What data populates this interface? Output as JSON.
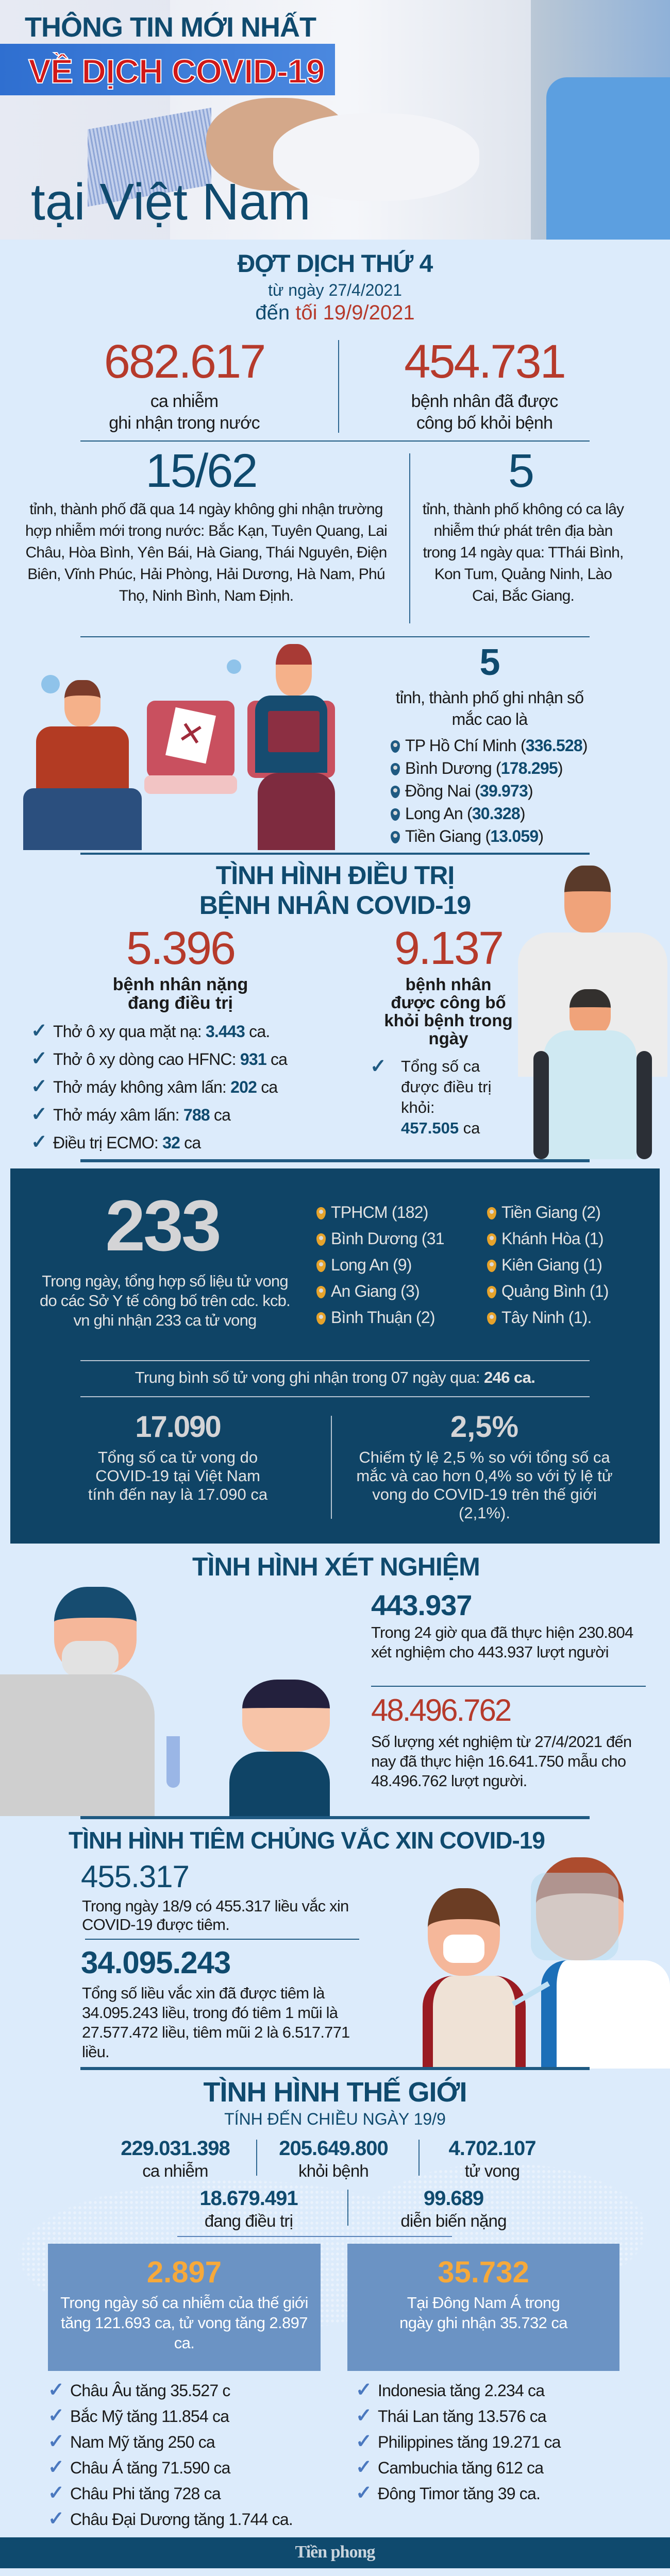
{
  "colors": {
    "background": "#dcebfb",
    "navy": "#0f4a6e",
    "red": "#b63a2b",
    "dark_panel": "#0f4466",
    "world_box": "#6b93c4",
    "orange": "#f6a93b"
  },
  "hero": {
    "line1": "THÔNG TIN MỚI NHẤT",
    "line2": "VỀ DỊCH COVID-19",
    "line3": "tại Việt Nam"
  },
  "wave": {
    "title": "ĐỢT DỊCH THỨ 4",
    "from": "từ ngày 27/4/2021",
    "to_prefix": "đến",
    "to_red": "tối 19/9/2021",
    "infected": {
      "value": "682.617",
      "label1": "ca nhiễm",
      "label2": "ghi nhận trong nước"
    },
    "recovered": {
      "value": "454.731",
      "label1": "bệnh nhân đã được",
      "label2": "công bố khỏi bệnh"
    },
    "no_new": {
      "value": "15/62",
      "text": "tỉnh, thành phố đã qua 14 ngày không ghi nhận trường hợp nhiễm mới trong nước: Bắc Kạn, Tuyên Quang, Lai Châu, Hòa Bình, Yên Bái, Hà Giang, Thái Nguyên, Điện Biên, Vĩnh Phúc, Hải Phòng, Hải Dương, Hà Nam, Phú Thọ, Ninh Bình, Nam Định."
    },
    "no_secondary": {
      "value": "5",
      "text": "tỉnh, thành phố không có ca lây nhiễm thứ phát trên địa bàn trong 14 ngày qua: TThái Bình, Kon Tum, Quảng Ninh, Lào Cai, Bắc Giang."
    },
    "top": {
      "value": "5",
      "text": "tỉnh, thành phố ghi nhận số mắc cao là",
      "items": [
        {
          "name": "TP Hồ Chí Minh",
          "count": "336.528"
        },
        {
          "name": "Bình Dương",
          "count": "178.295"
        },
        {
          "name": "Đồng Nai",
          "count": "39.973"
        },
        {
          "name": "Long An",
          "count": "30.328"
        },
        {
          "name": "Tiền Giang",
          "count": "13.059"
        }
      ]
    }
  },
  "treatment": {
    "title1": "TÌNH HÌNH ĐIỀU TRỊ",
    "title2": "BỆNH NHÂN COVID-19",
    "severe": {
      "value": "5.396",
      "label": "bệnh nhân nặng đang điều trị"
    },
    "items": [
      {
        "label": "Thở ô xy qua mặt nạ: ",
        "value": "3.443",
        "unit": " ca."
      },
      {
        "label": "Thở ô xy dòng cao HFNC: ",
        "value": "931",
        "unit": " ca"
      },
      {
        "label": "Thở máy không xâm lấn: ",
        "value": "202",
        "unit": " ca"
      },
      {
        "label": "Thở máy xâm lấn: ",
        "value": "788",
        "unit": " ca"
      },
      {
        "label": "Điều trị ECMO: ",
        "value": "32",
        "unit": " ca"
      }
    ],
    "discharged": {
      "value": "9.137",
      "label": "bệnh nhân được công bố khỏi bệnh trong ngày",
      "total_label": "Tổng số ca được điều trị khỏi:",
      "total_value": "457.505",
      "total_unit": " ca"
    }
  },
  "deaths": {
    "value": "233",
    "text": "Trong ngày, tổng hợp số liệu tử vong do các Sở Y tế công bố trên cdc. kcb. vn ghi nhận 233 ca tử vong",
    "col1": [
      "TPHCM (182)",
      "Bình Dương (31",
      "Long An (9)",
      "An Giang (3)",
      "Bình Thuận (2)"
    ],
    "col2": [
      "Tiền Giang (2)",
      "Khánh Hòa (1)",
      "Kiên Giang (1)",
      "Quảng Bình (1)",
      "Tây Ninh (1)."
    ],
    "avg_prefix": "Trung bình số tử vong ghi nhận trong 07 ngày qua: ",
    "avg_value": "246 ca.",
    "total": {
      "value": "17.090",
      "text": "Tổng số ca tử vong do COVID-19 tại Việt Nam tính đến nay là 17.090 ca"
    },
    "rate": {
      "value": "2,5%",
      "text": "Chiếm tỷ lệ 2,5 % so với tổng số ca mắc và cao hơn 0,4% so với tỷ lệ tử vong do COVID-19 trên thế giới (2,1%)."
    }
  },
  "testing": {
    "title": "TÌNH HÌNH XÉT NGHIỆM",
    "daily": {
      "value": "443.937",
      "text": "Trong 24 giờ qua đã thực hiện 230.804 xét nghiệm cho 443.937 lượt người"
    },
    "total": {
      "value": "48.496.762",
      "text": "Số lượng xét nghiệm từ 27/4/2021 đến nay đã thực hiện 16.641.750 mẫu cho 48.496.762 lượt người."
    }
  },
  "vaccine": {
    "title": "TÌNH HÌNH TIÊM CHỦNG VẮC XIN COVID-19",
    "daily": {
      "value": "455.317",
      "text": "Trong ngày 18/9 có 455.317 liều vắc xin COVID-19 được tiêm."
    },
    "total": {
      "value": "34.095.243",
      "text": "Tổng số liều vắc xin đã được tiêm là 34.095.243 liều, trong đó tiêm 1 mũi là 27.577.472 liều, tiêm mũi 2 là 6.517.771 liều."
    }
  },
  "world": {
    "title": "TÌNH HÌNH THẾ GIỚI",
    "subtitle": "TÍNH ĐẾN CHIỀU NGÀY 19/9",
    "stats": [
      {
        "value": "229.031.398",
        "label": "ca nhiễm"
      },
      {
        "value": "205.649.800",
        "label": "khỏi bệnh"
      },
      {
        "value": "4.702.107",
        "label": "tử vong"
      },
      {
        "value": "18.679.491",
        "label": "đang điều trị"
      },
      {
        "value": "99.689",
        "label": "diễn biến nặng"
      }
    ],
    "box_left": {
      "value": "2.897",
      "text": "Trong ngày số ca nhiễm của thế giới tăng 121.693 ca, tử vong tăng 2.897 ca."
    },
    "box_right": {
      "value": "35.732",
      "text": "Tại Đông Nam Á trong ngày ghi nhận 35.732 ca"
    },
    "regions": [
      "Châu Âu tăng 35.527 c",
      "Bắc Mỹ tăng 11.854 ca",
      "Nam Mỹ tăng 250 ca",
      "Châu Á tăng 71.590 ca",
      "Châu Phi tăng 728 ca",
      "Châu Đại Dương tăng 1.744 ca."
    ],
    "sea": [
      "Indonesia tăng 2.234 ca",
      "Thái Lan tăng 13.576 ca",
      "Philippines tăng 19.271 ca",
      "Cambuchia tăng 612 ca",
      "Đông Timor tăng 39 ca."
    ]
  },
  "footer": {
    "logo": "Tiền phong"
  }
}
